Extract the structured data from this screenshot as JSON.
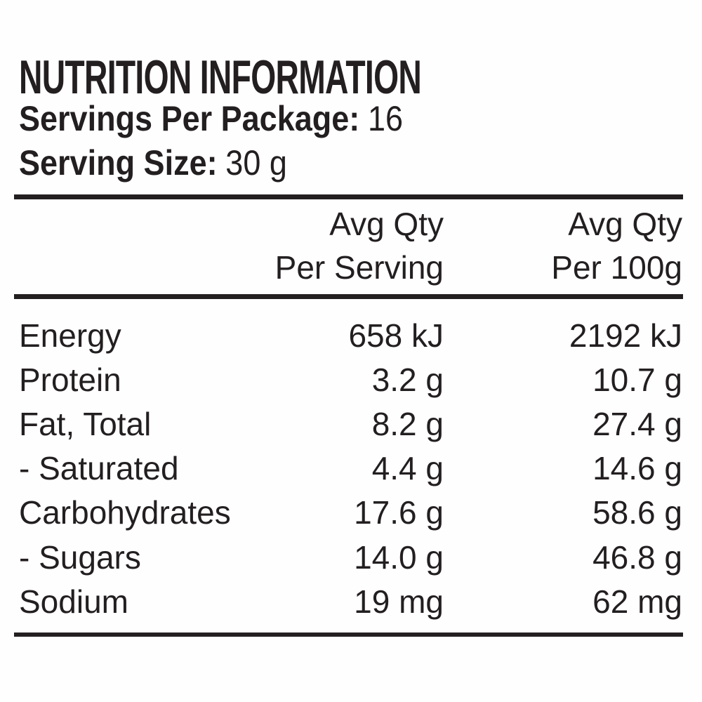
{
  "page": {
    "title": "NUTRITION INFORMATION",
    "servings_per_package": {
      "label": "Servings Per Package:",
      "value": "16"
    },
    "serving_size": {
      "label": "Serving Size:",
      "value": "30 g"
    }
  },
  "table": {
    "col_per_serving": {
      "line1": "Avg Qty",
      "line2": "Per Serving"
    },
    "col_per_100g": {
      "line1": "Avg Qty",
      "line2": "Per 100g"
    },
    "rows": [
      {
        "nutrient": "Energy",
        "per_serving": "658 kJ",
        "per_100g": "2192 kJ"
      },
      {
        "nutrient": "Protein",
        "per_serving": "3.2 g",
        "per_100g": "10.7 g"
      },
      {
        "nutrient": "Fat, Total",
        "per_serving": "8.2 g",
        "per_100g": "27.4 g"
      },
      {
        "nutrient": "- Saturated",
        "per_serving": "4.4 g",
        "per_100g": "14.6 g"
      },
      {
        "nutrient": "Carbohydrates",
        "per_serving": "17.6 g",
        "per_100g": "58.6 g"
      },
      {
        "nutrient": "- Sugars",
        "per_serving": "14.0 g",
        "per_100g": "46.8 g"
      },
      {
        "nutrient": "Sodium",
        "per_serving": "19 mg",
        "per_100g": "62 mg"
      }
    ]
  },
  "colors": {
    "text": "#231f20",
    "background": "#ffffff",
    "rule": "#231f20"
  }
}
